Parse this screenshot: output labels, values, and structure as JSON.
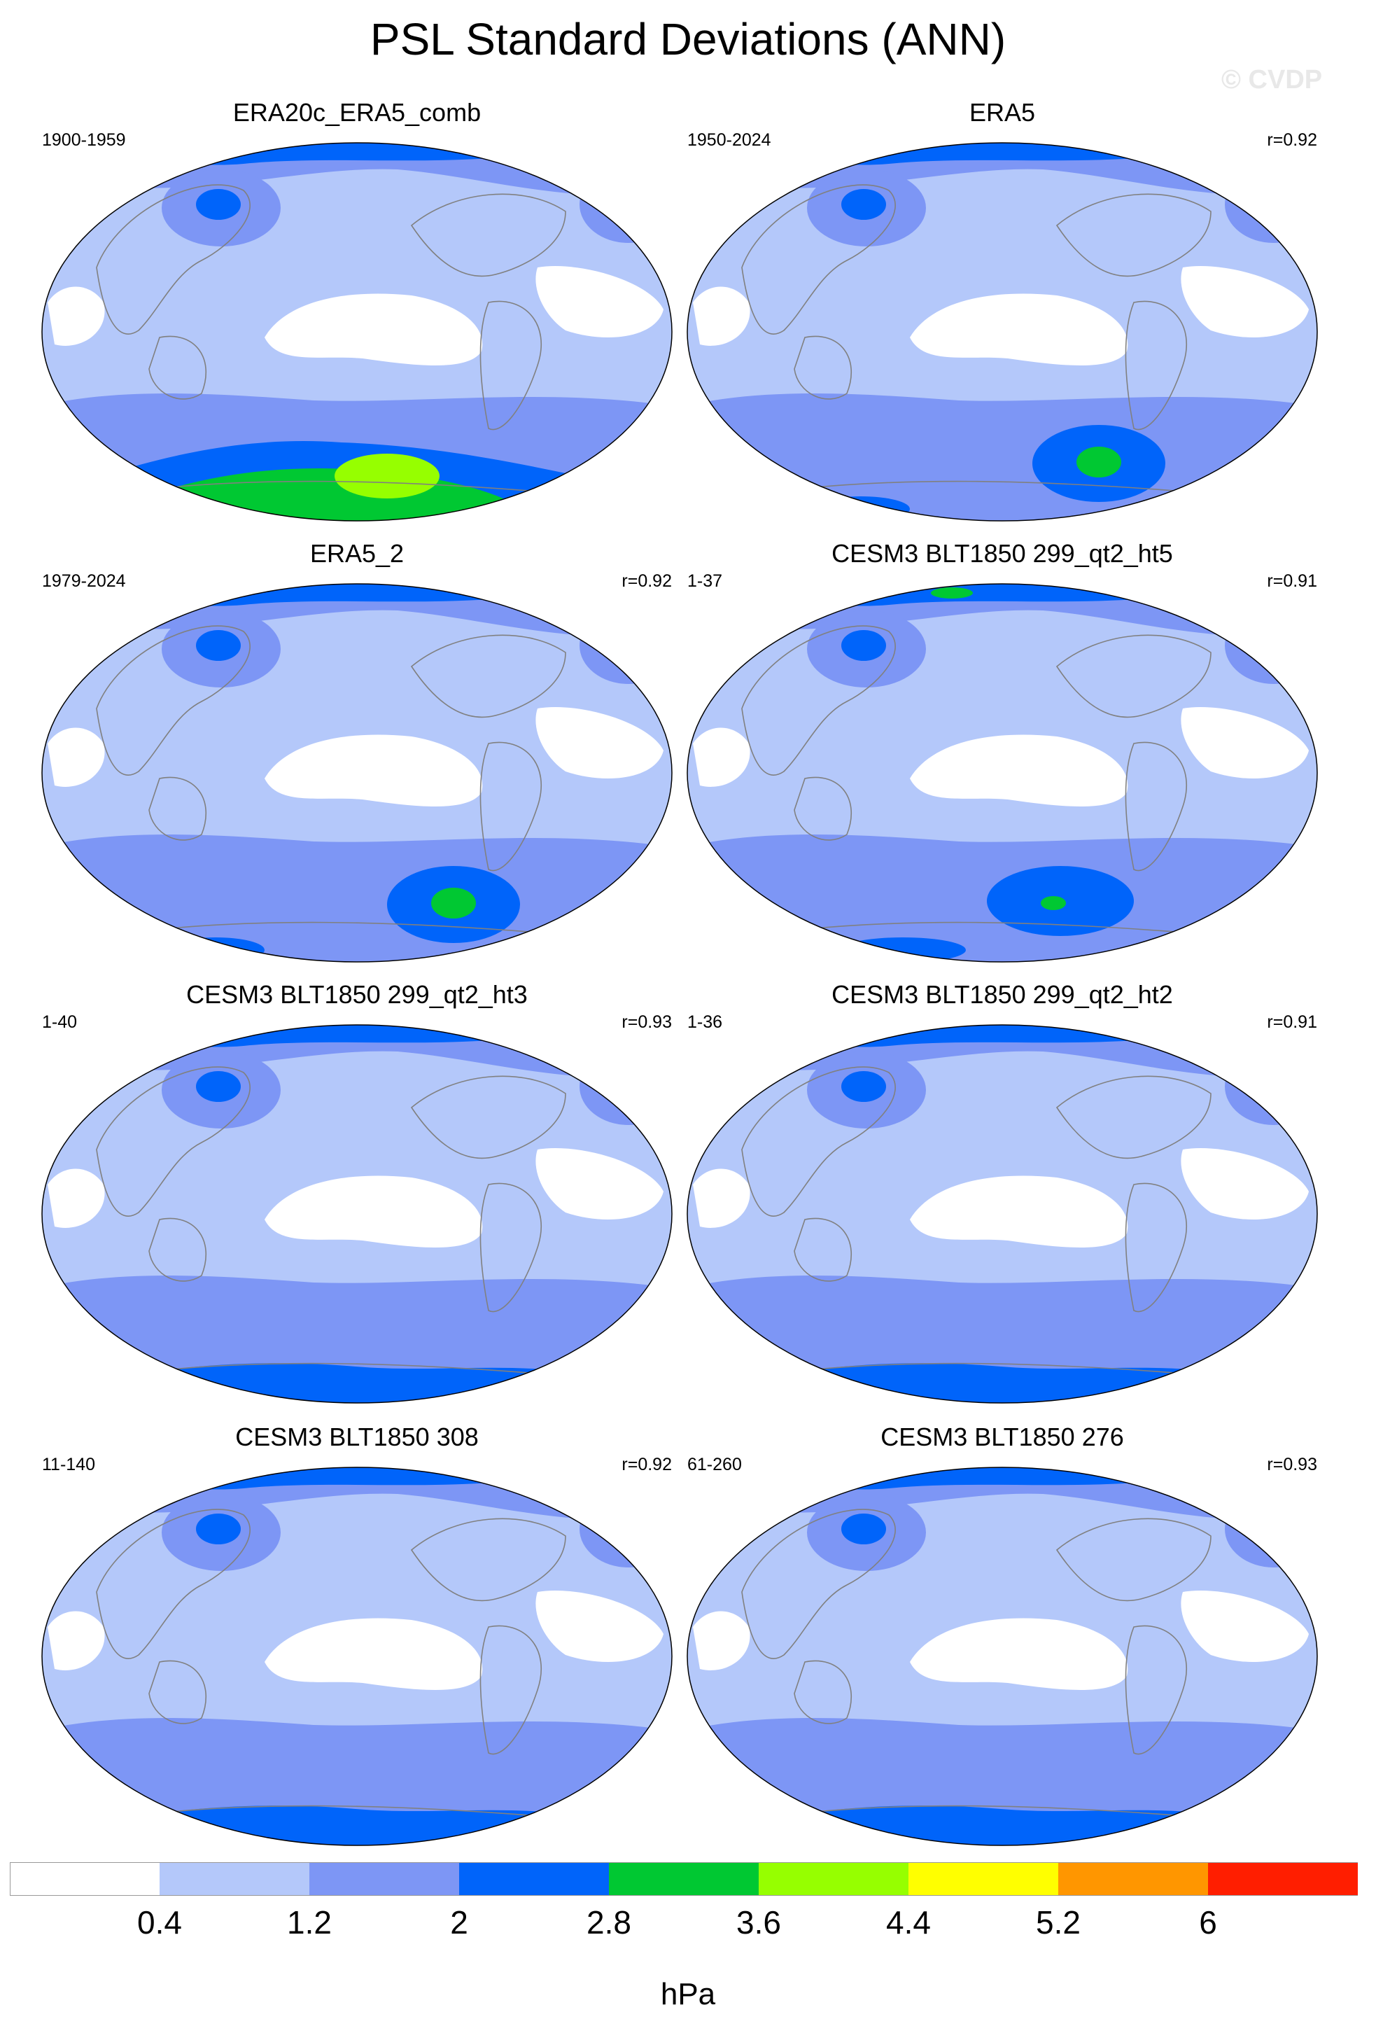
{
  "title": "PSL Standard Deviations (ANN)",
  "watermark": "© CVDP",
  "units": "hPa",
  "colorbar": {
    "ticks": [
      "0.4",
      "1.2",
      "2",
      "2.8",
      "3.6",
      "4.4",
      "5.2",
      "6"
    ],
    "colors": [
      "#ffffff",
      "#b4c8fa",
      "#7d96f5",
      "#0064fa",
      "#00c832",
      "#96ff00",
      "#ffff00",
      "#ff9600",
      "#ff1e00"
    ]
  },
  "panels": [
    {
      "title": "ERA20c_ERA5_comb",
      "period": "1900-1959",
      "corr": "",
      "variant": "strongsouth"
    },
    {
      "title": "ERA5",
      "period": "1950-2024",
      "corr": "r=0.92",
      "variant": "green"
    },
    {
      "title": "ERA5_2",
      "period": "1979-2024",
      "corr": "r=0.92",
      "variant": "green"
    },
    {
      "title": "CESM3 BLT1850 299_qt2_ht5",
      "period": "1-37",
      "corr": "r=0.91",
      "variant": "greensmall"
    },
    {
      "title": "CESM3 BLT1850 299_qt2_ht3",
      "period": "1-40",
      "corr": "r=0.93",
      "variant": "blue"
    },
    {
      "title": "CESM3 BLT1850 299_qt2_ht2",
      "period": "1-36",
      "corr": "r=0.91",
      "variant": "blue"
    },
    {
      "title": "CESM3 BLT1850 308",
      "period": "11-140",
      "corr": "r=0.92",
      "variant": "blue"
    },
    {
      "title": "CESM3 BLT1850 276",
      "period": "61-260",
      "corr": "r=0.93",
      "variant": "blue"
    }
  ]
}
